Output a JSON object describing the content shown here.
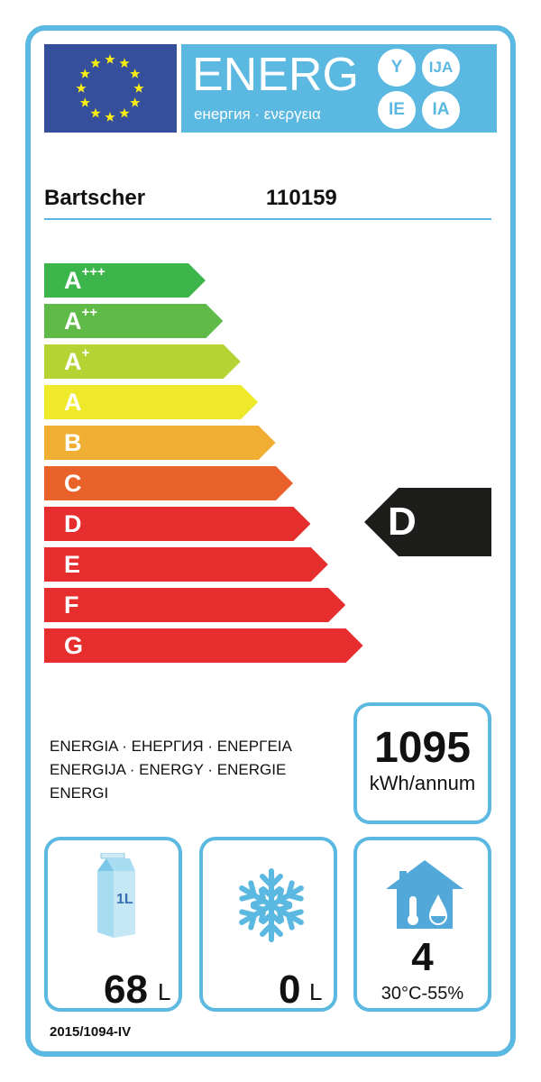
{
  "header": {
    "logo_text": "ENERG",
    "logo_subtitle": "енергия · ενεργεια",
    "suffixes": [
      "Y",
      "IJA",
      "IE",
      "IA"
    ],
    "flag": "eu-flag"
  },
  "supplier": "Bartscher",
  "model": "110159",
  "scale": [
    {
      "label": "A",
      "sup": "+++",
      "color": "#3cb54a"
    },
    {
      "label": "A",
      "sup": "++",
      "color": "#5fba47"
    },
    {
      "label": "A",
      "sup": "+",
      "color": "#b6d334"
    },
    {
      "label": "A",
      "sup": "",
      "color": "#eeea2b"
    },
    {
      "label": "B",
      "sup": "",
      "color": "#f0ae33"
    },
    {
      "label": "C",
      "sup": "",
      "color": "#e8622a"
    },
    {
      "label": "D",
      "sup": "",
      "color": "#e52e2d"
    },
    {
      "label": "E",
      "sup": "",
      "color": "#e52e2d"
    },
    {
      "label": "F",
      "sup": "",
      "color": "#e52e2d"
    },
    {
      "label": "G",
      "sup": "",
      "color": "#e52e2d"
    }
  ],
  "rating": "D",
  "energy_words": [
    "ENERGIA · ЕНЕРГИЯ · ΕΝΕΡΓΕΙΑ",
    "ENERGIJA · ENERGY · ENERGIE",
    "ENERGI"
  ],
  "consumption": {
    "value": "1095",
    "unit": "kWh/annum"
  },
  "fresh_volume": {
    "value": "68",
    "unit": "L",
    "icon": "milk-carton-icon",
    "icon_text": "1L"
  },
  "frozen_volume": {
    "value": "0",
    "unit": "L",
    "icon": "snowflake-icon"
  },
  "climate_class": {
    "value": "4",
    "condition": "30°C-55%",
    "icon": "house-climate-icon"
  },
  "regulation": "2015/1094-IV",
  "colors": {
    "accent": "#5bb8e0",
    "flag": "#354f9c",
    "star": "#f7ec13",
    "indicator": "#1d1d1b"
  }
}
